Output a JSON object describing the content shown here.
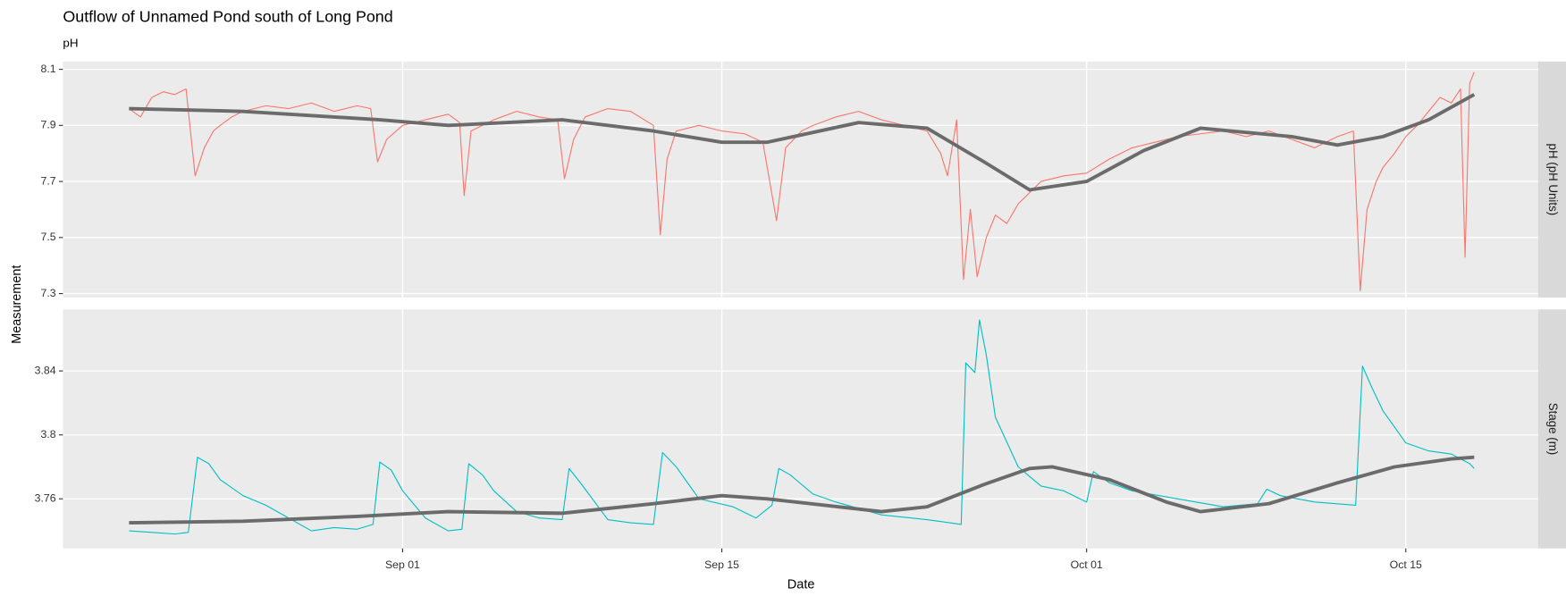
{
  "chart_data": [
    {
      "type": "line",
      "title": "Outflow of Unnamed Pond south of Long Pond",
      "subtitle": "pH",
      "ylabel": "Measurement",
      "facet": "pH (pH Units)",
      "xlim": [
        16.1,
        80.8
      ],
      "xticks": [
        31,
        45,
        61,
        75
      ],
      "ylim": [
        7.286,
        8.128
      ],
      "yticks": [
        7.3,
        7.5,
        7.7,
        7.9,
        8.1
      ],
      "grid": true,
      "series": [
        {
          "color": "#f8766d",
          "width": 1,
          "x": [
            19,
            19.5,
            20,
            20.5,
            21,
            21.5,
            21.9,
            22.3,
            22.7,
            23,
            23.5,
            24,
            25,
            26,
            27,
            28,
            29,
            29.6,
            29.9,
            30.3,
            31,
            32,
            33,
            33.5,
            33.7,
            34,
            35,
            36,
            37,
            37.8,
            38.1,
            38.5,
            39,
            40,
            41,
            42,
            42.3,
            42.6,
            43,
            44,
            45,
            46,
            46.8,
            47.4,
            47.8,
            48.5,
            49,
            50,
            51,
            52,
            53,
            54,
            54.6,
            54.9,
            55.3,
            55.6,
            55.9,
            56.2,
            56.6,
            57,
            57.5,
            58,
            59,
            60,
            61,
            62,
            63,
            64,
            65,
            66,
            67,
            68,
            69,
            70,
            71,
            72,
            72.7,
            73,
            73.3,
            73.7,
            74,
            74.5,
            75,
            75.5,
            76,
            76.5,
            77,
            77.4,
            77.6,
            77.8,
            78
          ],
          "values": [
            7.96,
            7.93,
            8.0,
            8.02,
            8.01,
            8.03,
            7.72,
            7.82,
            7.88,
            7.9,
            7.93,
            7.95,
            7.97,
            7.96,
            7.98,
            7.95,
            7.97,
            7.96,
            7.77,
            7.85,
            7.9,
            7.92,
            7.94,
            7.91,
            7.65,
            7.88,
            7.92,
            7.95,
            7.93,
            7.92,
            7.71,
            7.85,
            7.93,
            7.96,
            7.95,
            7.9,
            7.51,
            7.78,
            7.88,
            7.9,
            7.88,
            7.87,
            7.84,
            7.56,
            7.82,
            7.88,
            7.9,
            7.93,
            7.95,
            7.92,
            7.9,
            7.88,
            7.8,
            7.72,
            7.92,
            7.35,
            7.6,
            7.36,
            7.5,
            7.58,
            7.55,
            7.62,
            7.7,
            7.72,
            7.73,
            7.78,
            7.82,
            7.84,
            7.86,
            7.87,
            7.88,
            7.86,
            7.88,
            7.85,
            7.82,
            7.86,
            7.88,
            7.31,
            7.6,
            7.7,
            7.75,
            7.8,
            7.86,
            7.9,
            7.95,
            8.0,
            7.98,
            8.03,
            7.43,
            8.05,
            8.09
          ]
        },
        {
          "color": "#6b6b6b",
          "width": 3.5,
          "x": [
            19,
            24,
            30,
            33,
            38,
            42,
            45,
            47,
            51,
            54,
            56.5,
            58.5,
            61,
            63.5,
            66,
            70,
            72,
            74,
            76,
            78
          ],
          "values": [
            7.96,
            7.95,
            7.92,
            7.9,
            7.92,
            7.88,
            7.84,
            7.84,
            7.91,
            7.89,
            7.77,
            7.67,
            7.7,
            7.81,
            7.89,
            7.86,
            7.83,
            7.86,
            7.92,
            8.01
          ]
        }
      ]
    },
    {
      "type": "line",
      "xlabel": "Date",
      "facet": "Stage (m)",
      "xlim": [
        16.1,
        80.8
      ],
      "xticks": [
        {
          "value": 31,
          "label": "Sep 01"
        },
        {
          "value": 45,
          "label": "Sep 15"
        },
        {
          "value": 61,
          "label": "Oct 01"
        },
        {
          "value": 75,
          "label": "Oct 15"
        }
      ],
      "ylim": [
        3.729,
        3.8785
      ],
      "yticks": [
        3.76,
        3.8,
        3.84
      ],
      "grid": true,
      "series": [
        {
          "color": "#00bfc4",
          "width": 1,
          "x": [
            19,
            20,
            21,
            21.6,
            22,
            22.5,
            23,
            24,
            25,
            26,
            27,
            28,
            29,
            29.7,
            30,
            30.5,
            31,
            32,
            33,
            33.6,
            33.9,
            34.5,
            35,
            36,
            37,
            38,
            38.3,
            38.8,
            40,
            41,
            42,
            42.4,
            43,
            44,
            45.5,
            46.5,
            47.2,
            47.5,
            48,
            49,
            50,
            52,
            54,
            55,
            55.5,
            55.7,
            56.1,
            56.3,
            56.6,
            57,
            58,
            59,
            60,
            61,
            61.3,
            62,
            63,
            65,
            67,
            68.5,
            68.9,
            69.5,
            71,
            72.8,
            73.1,
            73.5,
            74,
            75,
            76,
            77,
            77.8,
            78
          ],
          "values": [
            3.74,
            3.739,
            3.738,
            3.739,
            3.786,
            3.782,
            3.772,
            3.762,
            3.756,
            3.748,
            3.74,
            3.742,
            3.741,
            3.744,
            3.783,
            3.778,
            3.765,
            3.748,
            3.74,
            3.741,
            3.782,
            3.775,
            3.765,
            3.752,
            3.748,
            3.747,
            3.779,
            3.77,
            3.747,
            3.745,
            3.744,
            3.789,
            3.78,
            3.76,
            3.755,
            3.748,
            3.756,
            3.779,
            3.775,
            3.763,
            3.758,
            3.75,
            3.747,
            3.745,
            3.744,
            3.845,
            3.839,
            3.872,
            3.85,
            3.811,
            3.78,
            3.768,
            3.765,
            3.758,
            3.777,
            3.77,
            3.765,
            3.76,
            3.755,
            3.757,
            3.766,
            3.762,
            3.758,
            3.756,
            3.843,
            3.83,
            3.815,
            3.795,
            3.79,
            3.788,
            3.782,
            3.779
          ]
        },
        {
          "color": "#6b6b6b",
          "width": 3.5,
          "x": [
            19,
            24,
            29,
            33,
            38,
            42,
            45,
            47,
            52,
            54,
            56.5,
            58.5,
            59.5,
            62,
            64.5,
            66,
            69,
            72,
            74.5,
            77,
            78
          ],
          "values": [
            3.745,
            3.746,
            3.749,
            3.752,
            3.751,
            3.757,
            3.762,
            3.76,
            3.752,
            3.755,
            3.769,
            3.779,
            3.78,
            3.772,
            3.758,
            3.752,
            3.757,
            3.77,
            3.78,
            3.785,
            3.786
          ]
        }
      ]
    }
  ]
}
